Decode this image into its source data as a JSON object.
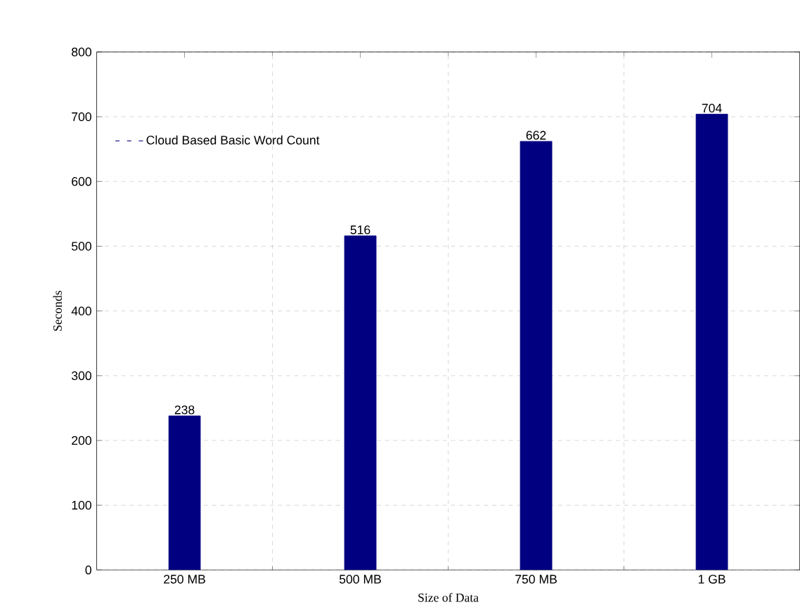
{
  "chart_data": {
    "type": "bar",
    "xlabel": "Size of Data",
    "ylabel": "Seconds",
    "categories": [
      "250 MB",
      "500 MB",
      "750 MB",
      "1 GB"
    ],
    "series": [
      {
        "name": "Cloud Based Basic Word Count",
        "color": "#000080",
        "values": [
          238,
          516,
          662,
          704
        ]
      }
    ],
    "ylim": [
      0,
      800
    ],
    "yticks": [
      0,
      100,
      200,
      300,
      400,
      500,
      600,
      700,
      800
    ],
    "grid": true,
    "legend": "top left",
    "data_labels": true
  }
}
